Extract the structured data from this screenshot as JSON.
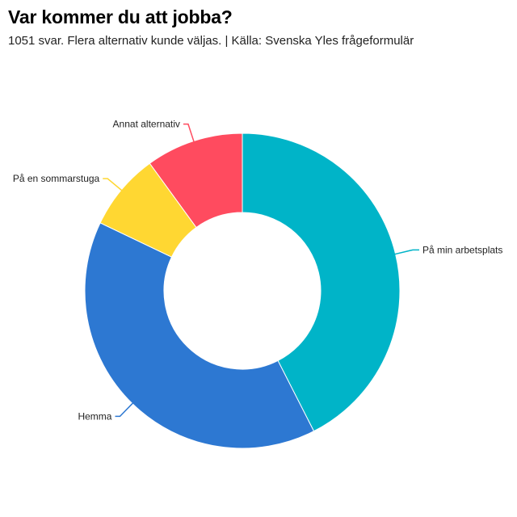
{
  "chart_data": {
    "type": "pie",
    "variant": "donut",
    "title": "Var kommer du att jobba?",
    "subtitle": "1051 svar. Flera alternativ kunde väljas. | Källa: Svenska Yles frågeformulär",
    "slices": [
      {
        "label": "På min arbetsplats",
        "value": 42.5,
        "color": "#00b4c8"
      },
      {
        "label": "Hemma",
        "value": 39.6,
        "color": "#2d78d2"
      },
      {
        "label": "På en sommarstuga",
        "value": 7.9,
        "color": "#ffd732"
      },
      {
        "label": "Annat alternativ",
        "value": 10.0,
        "color": "#ff4b5f"
      }
    ],
    "start_angle": "top",
    "direction": "clockwise",
    "legend": "none",
    "labels": "outside-with-leader-lines"
  }
}
